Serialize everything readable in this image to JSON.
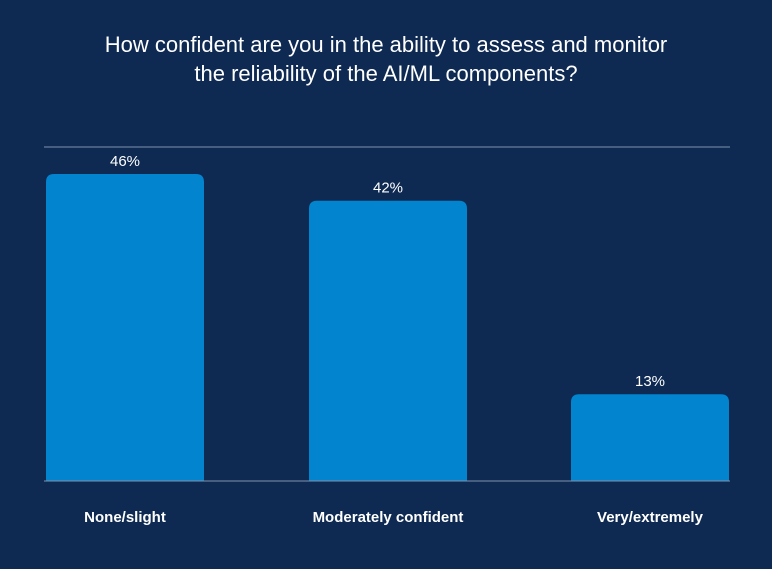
{
  "colors": {
    "background": "#0e2a52",
    "bar": "#0284cf",
    "axis": "#7f93ad"
  },
  "chart_data": {
    "type": "bar",
    "title_lines": [
      "How confident are you in the ability to assess and monitor",
      "the reliability of the AI/ML components?"
    ],
    "categories": [
      "None/slight",
      "Moderately confident",
      "Very/extremely"
    ],
    "values": [
      46,
      42,
      13
    ],
    "data_labels": [
      "46%",
      "42%",
      "13%"
    ],
    "xlabel": "",
    "ylabel": "",
    "ylim": [
      0,
      50
    ],
    "grid": false,
    "legend": "none"
  }
}
